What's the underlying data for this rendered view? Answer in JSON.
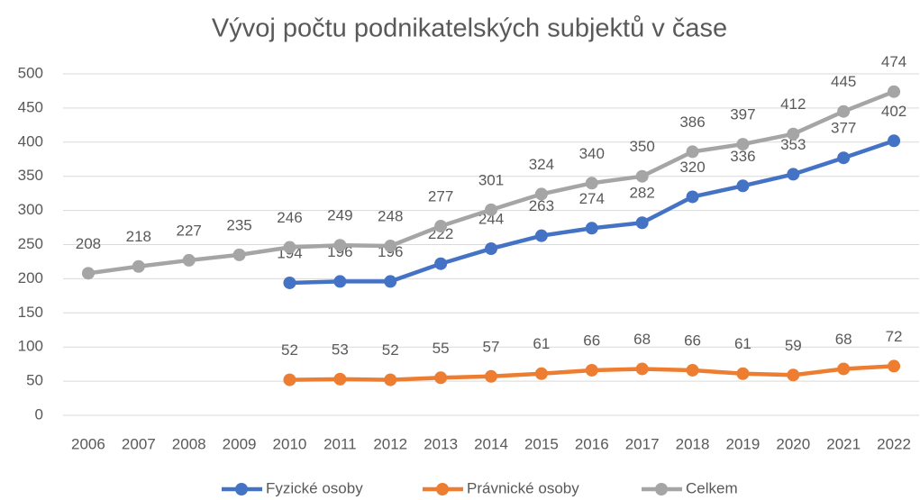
{
  "chart_data": {
    "type": "line",
    "title": "Vývoj počtu podnikatelských subjektů v čase",
    "categories": [
      "2006",
      "2007",
      "2008",
      "2009",
      "2010",
      "2011",
      "2012",
      "2013",
      "2014",
      "2015",
      "2016",
      "2017",
      "2018",
      "2019",
      "2020",
      "2021",
      "2022"
    ],
    "series": [
      {
        "name": "Fyzické osoby",
        "color": "#4472c4",
        "values": [
          null,
          null,
          null,
          null,
          194,
          196,
          196,
          222,
          244,
          263,
          274,
          282,
          320,
          336,
          353,
          377,
          402
        ]
      },
      {
        "name": "Právnické osoby",
        "color": "#ed7d31",
        "values": [
          null,
          null,
          null,
          null,
          52,
          53,
          52,
          55,
          57,
          61,
          66,
          68,
          66,
          61,
          59,
          68,
          72
        ]
      },
      {
        "name": "Celkem",
        "color": "#a5a5a5",
        "values": [
          208,
          218,
          227,
          235,
          246,
          249,
          248,
          277,
          301,
          324,
          340,
          350,
          386,
          397,
          412,
          445,
          474
        ]
      }
    ],
    "ylim": [
      0,
      500
    ],
    "yticks": [
      0,
      50,
      100,
      150,
      200,
      250,
      300,
      350,
      400,
      450,
      500
    ],
    "grid": true,
    "legend": "bottom"
  }
}
